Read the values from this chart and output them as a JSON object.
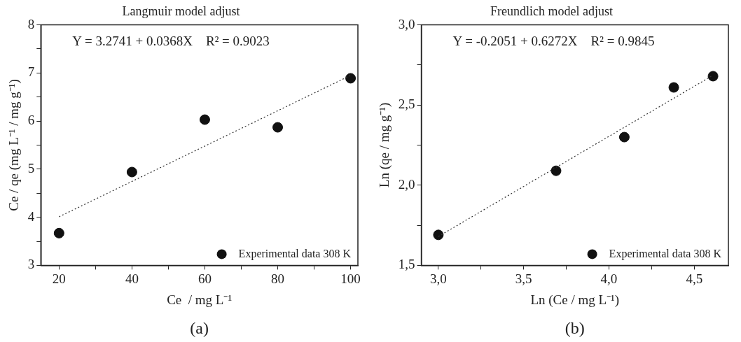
{
  "chart_data": [
    {
      "type": "scatter",
      "title": "Langmuir model adjust",
      "xlabel": "Ce  / mg L⁻¹",
      "ylabel": "Ce / qe (mg L⁻¹ / mg g⁻¹)",
      "xlim": [
        15,
        102
      ],
      "xticks": [
        20,
        {
          "value": 30,
          "label": null
        },
        40,
        {
          "value": 50,
          "label": null
        },
        60,
        {
          "value": 70,
          "label": null
        },
        80,
        {
          "value": 90,
          "label": null
        },
        100
      ],
      "ylim": [
        3,
        8
      ],
      "yticks": [
        3,
        {
          "value": 3.5,
          "label": null
        },
        4,
        {
          "value": 4.5,
          "label": null
        },
        5,
        {
          "value": 5.5,
          "label": null
        },
        6,
        {
          "value": 6.5,
          "label": null
        },
        7,
        {
          "value": 7.5,
          "label": null
        },
        8
      ],
      "legend": "bottom right",
      "series": [
        {
          "name": "Experimental data 308 K",
          "color": "#111111",
          "marker": "circle",
          "x": [
            20,
            40,
            60,
            80,
            100
          ],
          "values": [
            3.67,
            4.94,
            6.03,
            5.87,
            6.89
          ]
        },
        {
          "type": "line",
          "color": "#333333",
          "marker": "none",
          "line_style": "dotted",
          "x": [
            20,
            100
          ],
          "values": [
            4.01,
            6.95
          ]
        }
      ],
      "annotations": [
        "Y = 3.2741 + 0.0368X    R² = 0.9023",
        "(a)"
      ]
    },
    {
      "type": "scatter",
      "title": "Freundlich model adjust",
      "xlabel": "Ln (Ce / mg L⁻¹)",
      "ylabel": "Ln (qe / mg g⁻¹)",
      "xlim": [
        2.9,
        4.7
      ],
      "xticks": [
        {
          "value": 3,
          "label": "3,0"
        },
        {
          "value": 3.25,
          "label": null
        },
        {
          "value": 3.5,
          "label": "3,5"
        },
        {
          "value": 3.75,
          "label": null
        },
        {
          "value": 4,
          "label": "4,0"
        },
        {
          "value": 4.25,
          "label": null
        },
        {
          "value": 4.5,
          "label": "4,5"
        }
      ],
      "ylim": [
        1.5,
        3
      ],
      "yticks": [
        {
          "value": 1.5,
          "label": "1,5"
        },
        {
          "value": 1.75,
          "label": null
        },
        {
          "value": 2,
          "label": "2,0"
        },
        {
          "value": 2.25,
          "label": null
        },
        {
          "value": 2.5,
          "label": "2,5"
        },
        {
          "value": 2.75,
          "label": null
        },
        {
          "value": 3,
          "label": "3,0"
        }
      ],
      "legend": "bottom right",
      "series": [
        {
          "name": "Experimental data 308 K",
          "color": "#111111",
          "marker": "circle",
          "x": [
            3.0,
            3.69,
            4.09,
            4.38,
            4.61
          ],
          "values": [
            1.69,
            2.09,
            2.3,
            2.61,
            2.68
          ]
        },
        {
          "type": "line",
          "color": "#333333",
          "marker": "none",
          "line_style": "dotted",
          "x": [
            3.0,
            4.61
          ],
          "values": [
            1.68,
            2.686
          ]
        }
      ],
      "annotations": [
        "Y = -0.2051 + 0.6272X    R² = 0.9845",
        "(b)"
      ]
    }
  ]
}
